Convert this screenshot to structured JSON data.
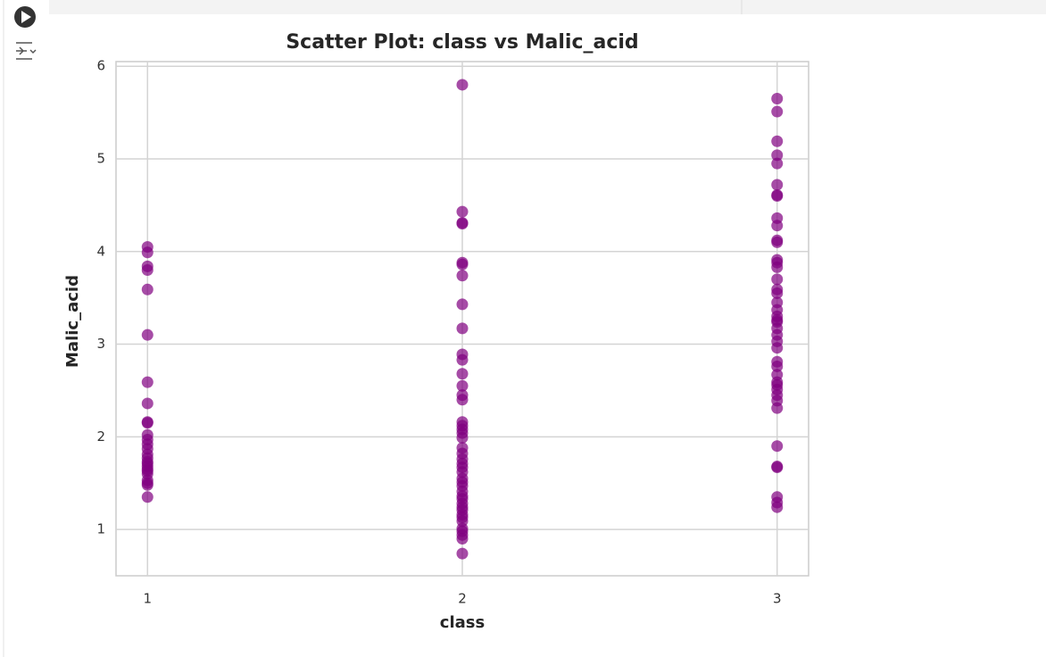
{
  "chart_data": {
    "type": "scatter",
    "title": "Scatter Plot: class vs Malic_acid",
    "x_label": "class",
    "y_label": "Malic_acid",
    "x": [
      1,
      1,
      1,
      1,
      1,
      1,
      1,
      1,
      1,
      1,
      1,
      1,
      1,
      1,
      1,
      1,
      1,
      1,
      1,
      1,
      1,
      1,
      1,
      1,
      1,
      1,
      2,
      2,
      2,
      2,
      2,
      2,
      2,
      2,
      2,
      2,
      2,
      2,
      2,
      2,
      2,
      2,
      2,
      2,
      2,
      2,
      2,
      2,
      2,
      2,
      2,
      2,
      2,
      2,
      2,
      2,
      2,
      2,
      2,
      2,
      2,
      2,
      2,
      2,
      2,
      2,
      2,
      2,
      2,
      3,
      3,
      3,
      3,
      3,
      3,
      3,
      3,
      3,
      3,
      3,
      3,
      3,
      3,
      3,
      3,
      3,
      3,
      3,
      3,
      3,
      3,
      3,
      3,
      3,
      3,
      3,
      3,
      3,
      3,
      3,
      3,
      3,
      3,
      3,
      3,
      3,
      3,
      3,
      3,
      3,
      3
    ],
    "values": [
      4.05,
      3.99,
      3.84,
      3.8,
      3.59,
      3.1,
      2.59,
      2.36,
      2.16,
      2.15,
      2.02,
      1.97,
      1.92,
      1.87,
      1.81,
      1.77,
      1.73,
      1.71,
      1.68,
      1.65,
      1.63,
      1.6,
      1.53,
      1.5,
      1.48,
      1.35,
      5.8,
      4.43,
      4.31,
      4.3,
      3.88,
      3.86,
      3.74,
      3.43,
      3.17,
      2.89,
      2.83,
      2.68,
      2.55,
      2.45,
      2.4,
      2.16,
      2.12,
      2.08,
      2.04,
      1.99,
      1.88,
      1.82,
      1.76,
      1.71,
      1.67,
      1.62,
      1.55,
      1.51,
      1.47,
      1.41,
      1.36,
      1.33,
      1.28,
      1.24,
      1.21,
      1.16,
      1.13,
      1.09,
      1.01,
      0.98,
      0.94,
      0.9,
      0.74,
      5.65,
      5.51,
      5.19,
      5.04,
      4.95,
      4.72,
      4.61,
      4.6,
      4.36,
      4.28,
      4.12,
      4.1,
      3.91,
      3.88,
      3.83,
      3.7,
      3.59,
      3.55,
      3.45,
      3.37,
      3.3,
      3.26,
      3.24,
      3.17,
      3.1,
      3.03,
      2.96,
      2.81,
      2.76,
      2.67,
      2.59,
      2.56,
      2.51,
      2.45,
      2.39,
      2.31,
      1.9,
      1.68,
      1.67,
      1.35,
      1.29,
      1.24
    ],
    "color": "#800080",
    "xlim": [
      0.9,
      3.1
    ],
    "ylim": [
      0.5,
      6.05
    ],
    "xticks": [
      1,
      2,
      3
    ],
    "yticks": [
      1,
      2,
      3,
      4,
      5,
      6
    ],
    "grid": true
  }
}
